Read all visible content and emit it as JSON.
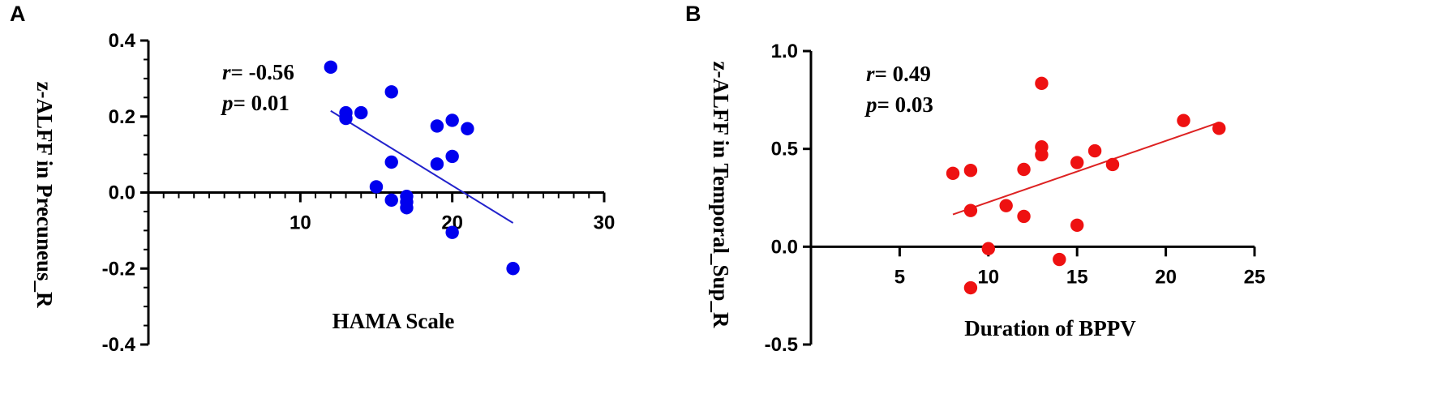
{
  "chart_data": [
    {
      "panel": "A",
      "type": "scatter",
      "title": "",
      "xlabel": "HAMA  Scale",
      "ylabel": "z-ALFF in Precuneus_R",
      "xlim": [
        0,
        30
      ],
      "ylim": [
        -0.4,
        0.4
      ],
      "x_ticks": [
        10,
        20,
        30
      ],
      "x_tick_labels": [
        "10",
        "20",
        "30"
      ],
      "y_ticks": [
        -0.4,
        -0.2,
        0.0,
        0.2,
        0.4
      ],
      "y_tick_labels": [
        "-0.4",
        "-0.2",
        "0.0",
        "0.2",
        "0.4"
      ],
      "x_axis_position": 0.0,
      "grid": false,
      "marker_color": "#0000ee",
      "line_color": "#2222cc",
      "stats": {
        "r_label": "r",
        "r_value": "= -0.56",
        "p_label": "p",
        "p_value": "= 0.01"
      },
      "points": [
        {
          "x": 12,
          "y": 0.33
        },
        {
          "x": 13,
          "y": 0.21
        },
        {
          "x": 13,
          "y": 0.195
        },
        {
          "x": 14,
          "y": 0.21
        },
        {
          "x": 15,
          "y": 0.015
        },
        {
          "x": 16,
          "y": 0.265
        },
        {
          "x": 16,
          "y": 0.08
        },
        {
          "x": 16,
          "y": -0.02
        },
        {
          "x": 17,
          "y": -0.01
        },
        {
          "x": 17,
          "y": -0.025
        },
        {
          "x": 17,
          "y": -0.04
        },
        {
          "x": 19,
          "y": 0.175
        },
        {
          "x": 19,
          "y": 0.075
        },
        {
          "x": 20,
          "y": 0.19
        },
        {
          "x": 20,
          "y": 0.095
        },
        {
          "x": 20,
          "y": -0.105
        },
        {
          "x": 21,
          "y": 0.168
        },
        {
          "x": 24,
          "y": -0.2
        }
      ],
      "fit_line": {
        "x": [
          12,
          24
        ],
        "y": [
          0.215,
          -0.08
        ]
      }
    },
    {
      "panel": "B",
      "type": "scatter",
      "title": "",
      "xlabel": "Duration of BPPV",
      "ylabel": "z-ALFF in Temporal_Sup_R",
      "xlim": [
        0,
        25
      ],
      "ylim": [
        -0.5,
        1.0
      ],
      "x_ticks": [
        5,
        10,
        15,
        20,
        25
      ],
      "x_tick_labels": [
        "5",
        "10",
        "15",
        "20",
        "25"
      ],
      "y_ticks": [
        -0.5,
        0.0,
        0.5,
        1.0
      ],
      "y_tick_labels": [
        "-0.5",
        "0.0",
        "0.5",
        "1.0"
      ],
      "x_axis_position": 0.0,
      "grid": false,
      "marker_color": "#ee1111",
      "line_color": "#dd2222",
      "stats": {
        "r_label": "r",
        "r_value": "= 0.49",
        "p_label": "p",
        "p_value": "= 0.03"
      },
      "points": [
        {
          "x": 8,
          "y": 0.375
        },
        {
          "x": 9,
          "y": 0.39
        },
        {
          "x": 9,
          "y": 0.185
        },
        {
          "x": 9,
          "y": -0.21
        },
        {
          "x": 10,
          "y": -0.01
        },
        {
          "x": 11,
          "y": 0.21
        },
        {
          "x": 12,
          "y": 0.395
        },
        {
          "x": 12,
          "y": 0.155
        },
        {
          "x": 13,
          "y": 0.835
        },
        {
          "x": 13,
          "y": 0.51
        },
        {
          "x": 13,
          "y": 0.47
        },
        {
          "x": 14,
          "y": -0.065
        },
        {
          "x": 15,
          "y": 0.43
        },
        {
          "x": 15,
          "y": 0.11
        },
        {
          "x": 16,
          "y": 0.49
        },
        {
          "x": 17,
          "y": 0.42
        },
        {
          "x": 21,
          "y": 0.645
        },
        {
          "x": 23,
          "y": 0.605
        }
      ],
      "fit_line": {
        "x": [
          8,
          23
        ],
        "y": [
          0.165,
          0.635
        ]
      }
    }
  ]
}
